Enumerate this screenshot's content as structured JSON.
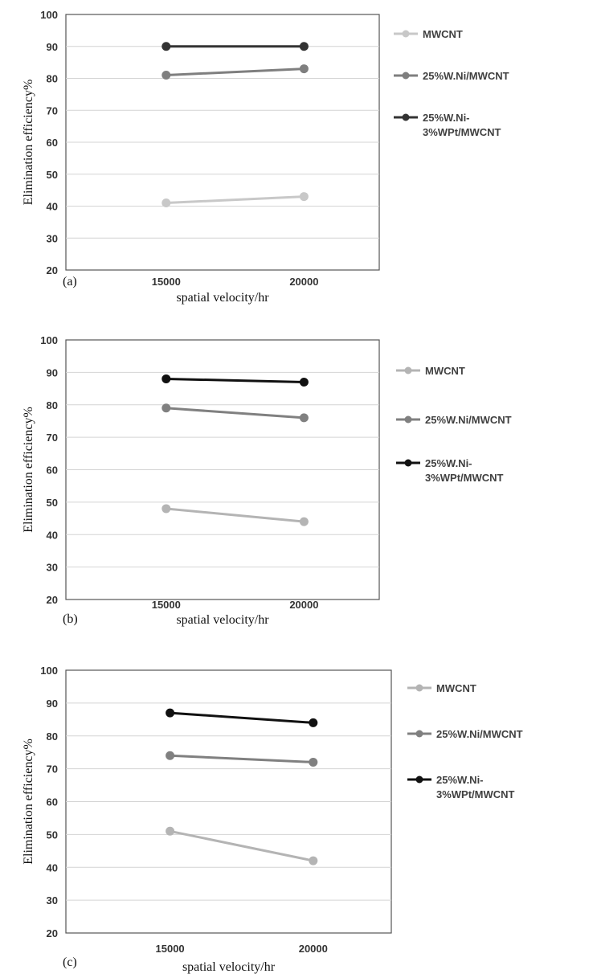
{
  "chart_data": [
    {
      "type": "line",
      "panel_label": "(a)",
      "categories": [
        "15000",
        "20000"
      ],
      "ylabel": "Elimination efficiency%",
      "xlabel": "spatial velocity/hr",
      "ylim": [
        20,
        100
      ],
      "yticks": [
        20,
        30,
        40,
        50,
        60,
        70,
        80,
        90,
        100
      ],
      "grid": true,
      "legend_position": "right",
      "series": [
        {
          "name": "MWCNT",
          "legend_lines": [
            "MWCNT"
          ],
          "values": [
            41,
            43
          ],
          "color": "#c8c8c8"
        },
        {
          "name": "25%W.Ni/MWCNT",
          "legend_lines": [
            "25%W.Ni/MWCNT"
          ],
          "values": [
            81,
            83
          ],
          "color": "#7f7f7f"
        },
        {
          "name": "25%W.Ni-3%WPt/MWCNT",
          "legend_lines": [
            "25%W.Ni-",
            "3%WPt/MWCNT"
          ],
          "values": [
            90,
            90
          ],
          "color": "#333333"
        }
      ]
    },
    {
      "type": "line",
      "panel_label": "(b)",
      "categories": [
        "15000",
        "20000"
      ],
      "ylabel": "Elimination efficiency%",
      "xlabel": "spatial velocity/hr",
      "ylim": [
        20,
        100
      ],
      "yticks": [
        20,
        30,
        40,
        50,
        60,
        70,
        80,
        90,
        100
      ],
      "grid": true,
      "legend_position": "right",
      "series": [
        {
          "name": "MWCNT",
          "legend_lines": [
            "MWCNT"
          ],
          "values": [
            48,
            44
          ],
          "color": "#b4b4b4"
        },
        {
          "name": "25%W.Ni/MWCNT",
          "legend_lines": [
            "25%W.Ni/MWCNT"
          ],
          "values": [
            79,
            76
          ],
          "color": "#808080"
        },
        {
          "name": "25%W.Ni-3%WPt/MWCNT",
          "legend_lines": [
            "25%W.Ni-",
            "3%WPt/MWCNT"
          ],
          "values": [
            88,
            87
          ],
          "color": "#111111"
        }
      ]
    },
    {
      "type": "line",
      "panel_label": "(c)",
      "categories": [
        "15000",
        "20000"
      ],
      "ylabel": "Elimination efficiency%",
      "xlabel": "spatial velocity/hr",
      "ylim": [
        20,
        100
      ],
      "yticks": [
        20,
        30,
        40,
        50,
        60,
        70,
        80,
        90,
        100
      ],
      "grid": true,
      "legend_position": "right",
      "series": [
        {
          "name": "MWCNT",
          "legend_lines": [
            "MWCNT"
          ],
          "values": [
            51,
            42
          ],
          "color": "#b4b4b4"
        },
        {
          "name": "25%W.Ni/MWCNT",
          "legend_lines": [
            "25%W.Ni/MWCNT"
          ],
          "values": [
            74,
            72
          ],
          "color": "#808080"
        },
        {
          "name": "25%W.Ni-3%WPt/MWCNT",
          "legend_lines": [
            "25%W.Ni-",
            "3%WPt/MWCNT"
          ],
          "values": [
            87,
            84
          ],
          "color": "#111111"
        }
      ]
    }
  ]
}
